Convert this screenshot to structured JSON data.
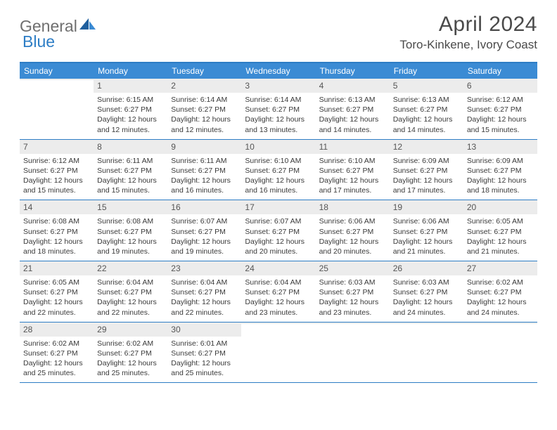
{
  "brand": {
    "part1": "General",
    "part2": "Blue"
  },
  "title": "April 2024",
  "location": "Toro-Kinkene, Ivory Coast",
  "colors": {
    "header_bg": "#3b8bd4",
    "border": "#2d7dc5",
    "daynum_bg": "#ececec",
    "text": "#3a3a3a",
    "logo_gray": "#6f6f6f",
    "logo_blue": "#2d7dc5"
  },
  "day_names": [
    "Sunday",
    "Monday",
    "Tuesday",
    "Wednesday",
    "Thursday",
    "Friday",
    "Saturday"
  ],
  "weeks": [
    [
      {
        "blank": true
      },
      {
        "n": "1",
        "sr": "Sunrise: 6:15 AM",
        "ss": "Sunset: 6:27 PM",
        "d1": "Daylight: 12 hours",
        "d2": "and 12 minutes."
      },
      {
        "n": "2",
        "sr": "Sunrise: 6:14 AM",
        "ss": "Sunset: 6:27 PM",
        "d1": "Daylight: 12 hours",
        "d2": "and 12 minutes."
      },
      {
        "n": "3",
        "sr": "Sunrise: 6:14 AM",
        "ss": "Sunset: 6:27 PM",
        "d1": "Daylight: 12 hours",
        "d2": "and 13 minutes."
      },
      {
        "n": "4",
        "sr": "Sunrise: 6:13 AM",
        "ss": "Sunset: 6:27 PM",
        "d1": "Daylight: 12 hours",
        "d2": "and 14 minutes."
      },
      {
        "n": "5",
        "sr": "Sunrise: 6:13 AM",
        "ss": "Sunset: 6:27 PM",
        "d1": "Daylight: 12 hours",
        "d2": "and 14 minutes."
      },
      {
        "n": "6",
        "sr": "Sunrise: 6:12 AM",
        "ss": "Sunset: 6:27 PM",
        "d1": "Daylight: 12 hours",
        "d2": "and 15 minutes."
      }
    ],
    [
      {
        "n": "7",
        "sr": "Sunrise: 6:12 AM",
        "ss": "Sunset: 6:27 PM",
        "d1": "Daylight: 12 hours",
        "d2": "and 15 minutes."
      },
      {
        "n": "8",
        "sr": "Sunrise: 6:11 AM",
        "ss": "Sunset: 6:27 PM",
        "d1": "Daylight: 12 hours",
        "d2": "and 15 minutes."
      },
      {
        "n": "9",
        "sr": "Sunrise: 6:11 AM",
        "ss": "Sunset: 6:27 PM",
        "d1": "Daylight: 12 hours",
        "d2": "and 16 minutes."
      },
      {
        "n": "10",
        "sr": "Sunrise: 6:10 AM",
        "ss": "Sunset: 6:27 PM",
        "d1": "Daylight: 12 hours",
        "d2": "and 16 minutes."
      },
      {
        "n": "11",
        "sr": "Sunrise: 6:10 AM",
        "ss": "Sunset: 6:27 PM",
        "d1": "Daylight: 12 hours",
        "d2": "and 17 minutes."
      },
      {
        "n": "12",
        "sr": "Sunrise: 6:09 AM",
        "ss": "Sunset: 6:27 PM",
        "d1": "Daylight: 12 hours",
        "d2": "and 17 minutes."
      },
      {
        "n": "13",
        "sr": "Sunrise: 6:09 AM",
        "ss": "Sunset: 6:27 PM",
        "d1": "Daylight: 12 hours",
        "d2": "and 18 minutes."
      }
    ],
    [
      {
        "n": "14",
        "sr": "Sunrise: 6:08 AM",
        "ss": "Sunset: 6:27 PM",
        "d1": "Daylight: 12 hours",
        "d2": "and 18 minutes."
      },
      {
        "n": "15",
        "sr": "Sunrise: 6:08 AM",
        "ss": "Sunset: 6:27 PM",
        "d1": "Daylight: 12 hours",
        "d2": "and 19 minutes."
      },
      {
        "n": "16",
        "sr": "Sunrise: 6:07 AM",
        "ss": "Sunset: 6:27 PM",
        "d1": "Daylight: 12 hours",
        "d2": "and 19 minutes."
      },
      {
        "n": "17",
        "sr": "Sunrise: 6:07 AM",
        "ss": "Sunset: 6:27 PM",
        "d1": "Daylight: 12 hours",
        "d2": "and 20 minutes."
      },
      {
        "n": "18",
        "sr": "Sunrise: 6:06 AM",
        "ss": "Sunset: 6:27 PM",
        "d1": "Daylight: 12 hours",
        "d2": "and 20 minutes."
      },
      {
        "n": "19",
        "sr": "Sunrise: 6:06 AM",
        "ss": "Sunset: 6:27 PM",
        "d1": "Daylight: 12 hours",
        "d2": "and 21 minutes."
      },
      {
        "n": "20",
        "sr": "Sunrise: 6:05 AM",
        "ss": "Sunset: 6:27 PM",
        "d1": "Daylight: 12 hours",
        "d2": "and 21 minutes."
      }
    ],
    [
      {
        "n": "21",
        "sr": "Sunrise: 6:05 AM",
        "ss": "Sunset: 6:27 PM",
        "d1": "Daylight: 12 hours",
        "d2": "and 22 minutes."
      },
      {
        "n": "22",
        "sr": "Sunrise: 6:04 AM",
        "ss": "Sunset: 6:27 PM",
        "d1": "Daylight: 12 hours",
        "d2": "and 22 minutes."
      },
      {
        "n": "23",
        "sr": "Sunrise: 6:04 AM",
        "ss": "Sunset: 6:27 PM",
        "d1": "Daylight: 12 hours",
        "d2": "and 22 minutes."
      },
      {
        "n": "24",
        "sr": "Sunrise: 6:04 AM",
        "ss": "Sunset: 6:27 PM",
        "d1": "Daylight: 12 hours",
        "d2": "and 23 minutes."
      },
      {
        "n": "25",
        "sr": "Sunrise: 6:03 AM",
        "ss": "Sunset: 6:27 PM",
        "d1": "Daylight: 12 hours",
        "d2": "and 23 minutes."
      },
      {
        "n": "26",
        "sr": "Sunrise: 6:03 AM",
        "ss": "Sunset: 6:27 PM",
        "d1": "Daylight: 12 hours",
        "d2": "and 24 minutes."
      },
      {
        "n": "27",
        "sr": "Sunrise: 6:02 AM",
        "ss": "Sunset: 6:27 PM",
        "d1": "Daylight: 12 hours",
        "d2": "and 24 minutes."
      }
    ],
    [
      {
        "n": "28",
        "sr": "Sunrise: 6:02 AM",
        "ss": "Sunset: 6:27 PM",
        "d1": "Daylight: 12 hours",
        "d2": "and 25 minutes."
      },
      {
        "n": "29",
        "sr": "Sunrise: 6:02 AM",
        "ss": "Sunset: 6:27 PM",
        "d1": "Daylight: 12 hours",
        "d2": "and 25 minutes."
      },
      {
        "n": "30",
        "sr": "Sunrise: 6:01 AM",
        "ss": "Sunset: 6:27 PM",
        "d1": "Daylight: 12 hours",
        "d2": "and 25 minutes."
      },
      {
        "blank": true
      },
      {
        "blank": true
      },
      {
        "blank": true
      },
      {
        "blank": true
      }
    ]
  ]
}
